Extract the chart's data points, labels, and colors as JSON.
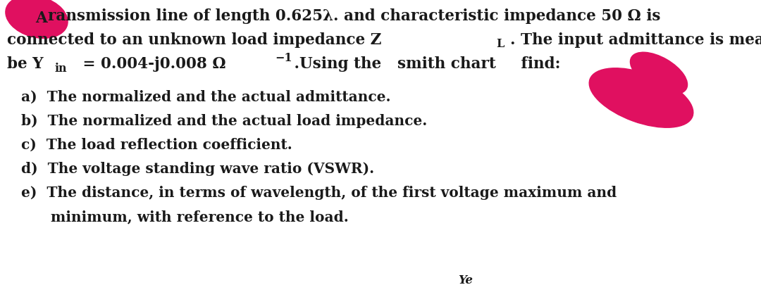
{
  "background_color": "#ffffff",
  "fig_width": 10.8,
  "fig_height": 4.06,
  "dpi": 100,
  "text_color": "#1a1a1a",
  "font_size_body": 15.5,
  "font_size_items": 14.5,
  "font_size_sub": 11.5,
  "red_color": "#e01060",
  "body_lines": [
    "ransmission line of length 0.625λ. and characteristic impedance 50 Ω is",
    "connected to an unknown load impedance Z",
    "be Y"
  ],
  "line2_rest": ". The input admittance is measured to",
  "line3_eq": " = 0.004-j0.008 Ω",
  "line3_rest": " .Using the ",
  "line3_bold": "smith chart",
  "line3_end": " find:",
  "items": [
    "a)  The normalized and the actual admittance.",
    "b)  The normalized and the actual load impedance.",
    "c)  The load reflection coefficient.",
    "d)  The voltage standing wave ratio (VSWR).",
    "e)  The distance, in terms of wavelength, of the first voltage maximum and",
    "      minimum, with reference to the load."
  ],
  "note": "Ye"
}
